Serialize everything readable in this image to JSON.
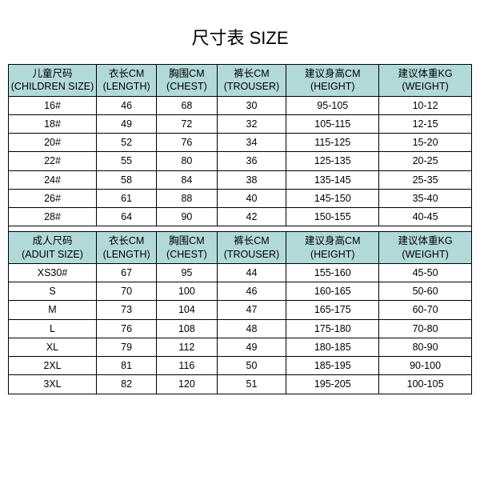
{
  "title": "尺寸表 SIZE",
  "colors": {
    "header_bg": "#b2d9d9",
    "border": "#000000",
    "bg": "#ffffff",
    "text": "#000000"
  },
  "fontsizes": {
    "title": 22,
    "cell": 12.5
  },
  "children_table": {
    "columns": [
      {
        "zh": "儿童尺码",
        "en": "(CHILDREN SIZE)"
      },
      {
        "zh": "衣长CM",
        "en": "(LENGTH)"
      },
      {
        "zh": "胸围CM",
        "en": "(CHEST)"
      },
      {
        "zh": "裤长CM",
        "en": "(TROUSER)"
      },
      {
        "zh": "建议身高CM",
        "en": "(HEIGHT)"
      },
      {
        "zh": "建议体重KG",
        "en": "(WEIGHT)"
      }
    ],
    "rows": [
      [
        "16#",
        "46",
        "68",
        "30",
        "95-105",
        "10-12"
      ],
      [
        "18#",
        "49",
        "72",
        "32",
        "105-115",
        "12-15"
      ],
      [
        "20#",
        "52",
        "76",
        "34",
        "115-125",
        "15-20"
      ],
      [
        "22#",
        "55",
        "80",
        "36",
        "125-135",
        "20-25"
      ],
      [
        "24#",
        "58",
        "84",
        "38",
        "135-145",
        "25-35"
      ],
      [
        "26#",
        "61",
        "88",
        "40",
        "145-150",
        "35-40"
      ],
      [
        "28#",
        "64",
        "90",
        "42",
        "150-155",
        "40-45"
      ]
    ]
  },
  "adult_table": {
    "columns": [
      {
        "zh": "成人尺码",
        "en": "(ADUIT SIZE)"
      },
      {
        "zh": "衣长CM",
        "en": "(LENGTH)"
      },
      {
        "zh": "胸围CM",
        "en": "(CHEST)"
      },
      {
        "zh": "裤长CM",
        "en": "(TROUSER)"
      },
      {
        "zh": "建议身高CM",
        "en": "(HEIGHT)"
      },
      {
        "zh": "建议体重KG",
        "en": "(WEIGHT)"
      }
    ],
    "rows": [
      [
        "XS30#",
        "67",
        "95",
        "44",
        "155-160",
        "45-50"
      ],
      [
        "S",
        "70",
        "100",
        "46",
        "160-165",
        "50-60"
      ],
      [
        "M",
        "73",
        "104",
        "47",
        "165-175",
        "60-70"
      ],
      [
        "L",
        "76",
        "108",
        "48",
        "175-180",
        "70-80"
      ],
      [
        "XL",
        "79",
        "112",
        "49",
        "180-185",
        "80-90"
      ],
      [
        "2XL",
        "81",
        "116",
        "50",
        "185-195",
        "90-100"
      ],
      [
        "3XL",
        "82",
        "120",
        "51",
        "195-205",
        "100-105"
      ]
    ]
  }
}
